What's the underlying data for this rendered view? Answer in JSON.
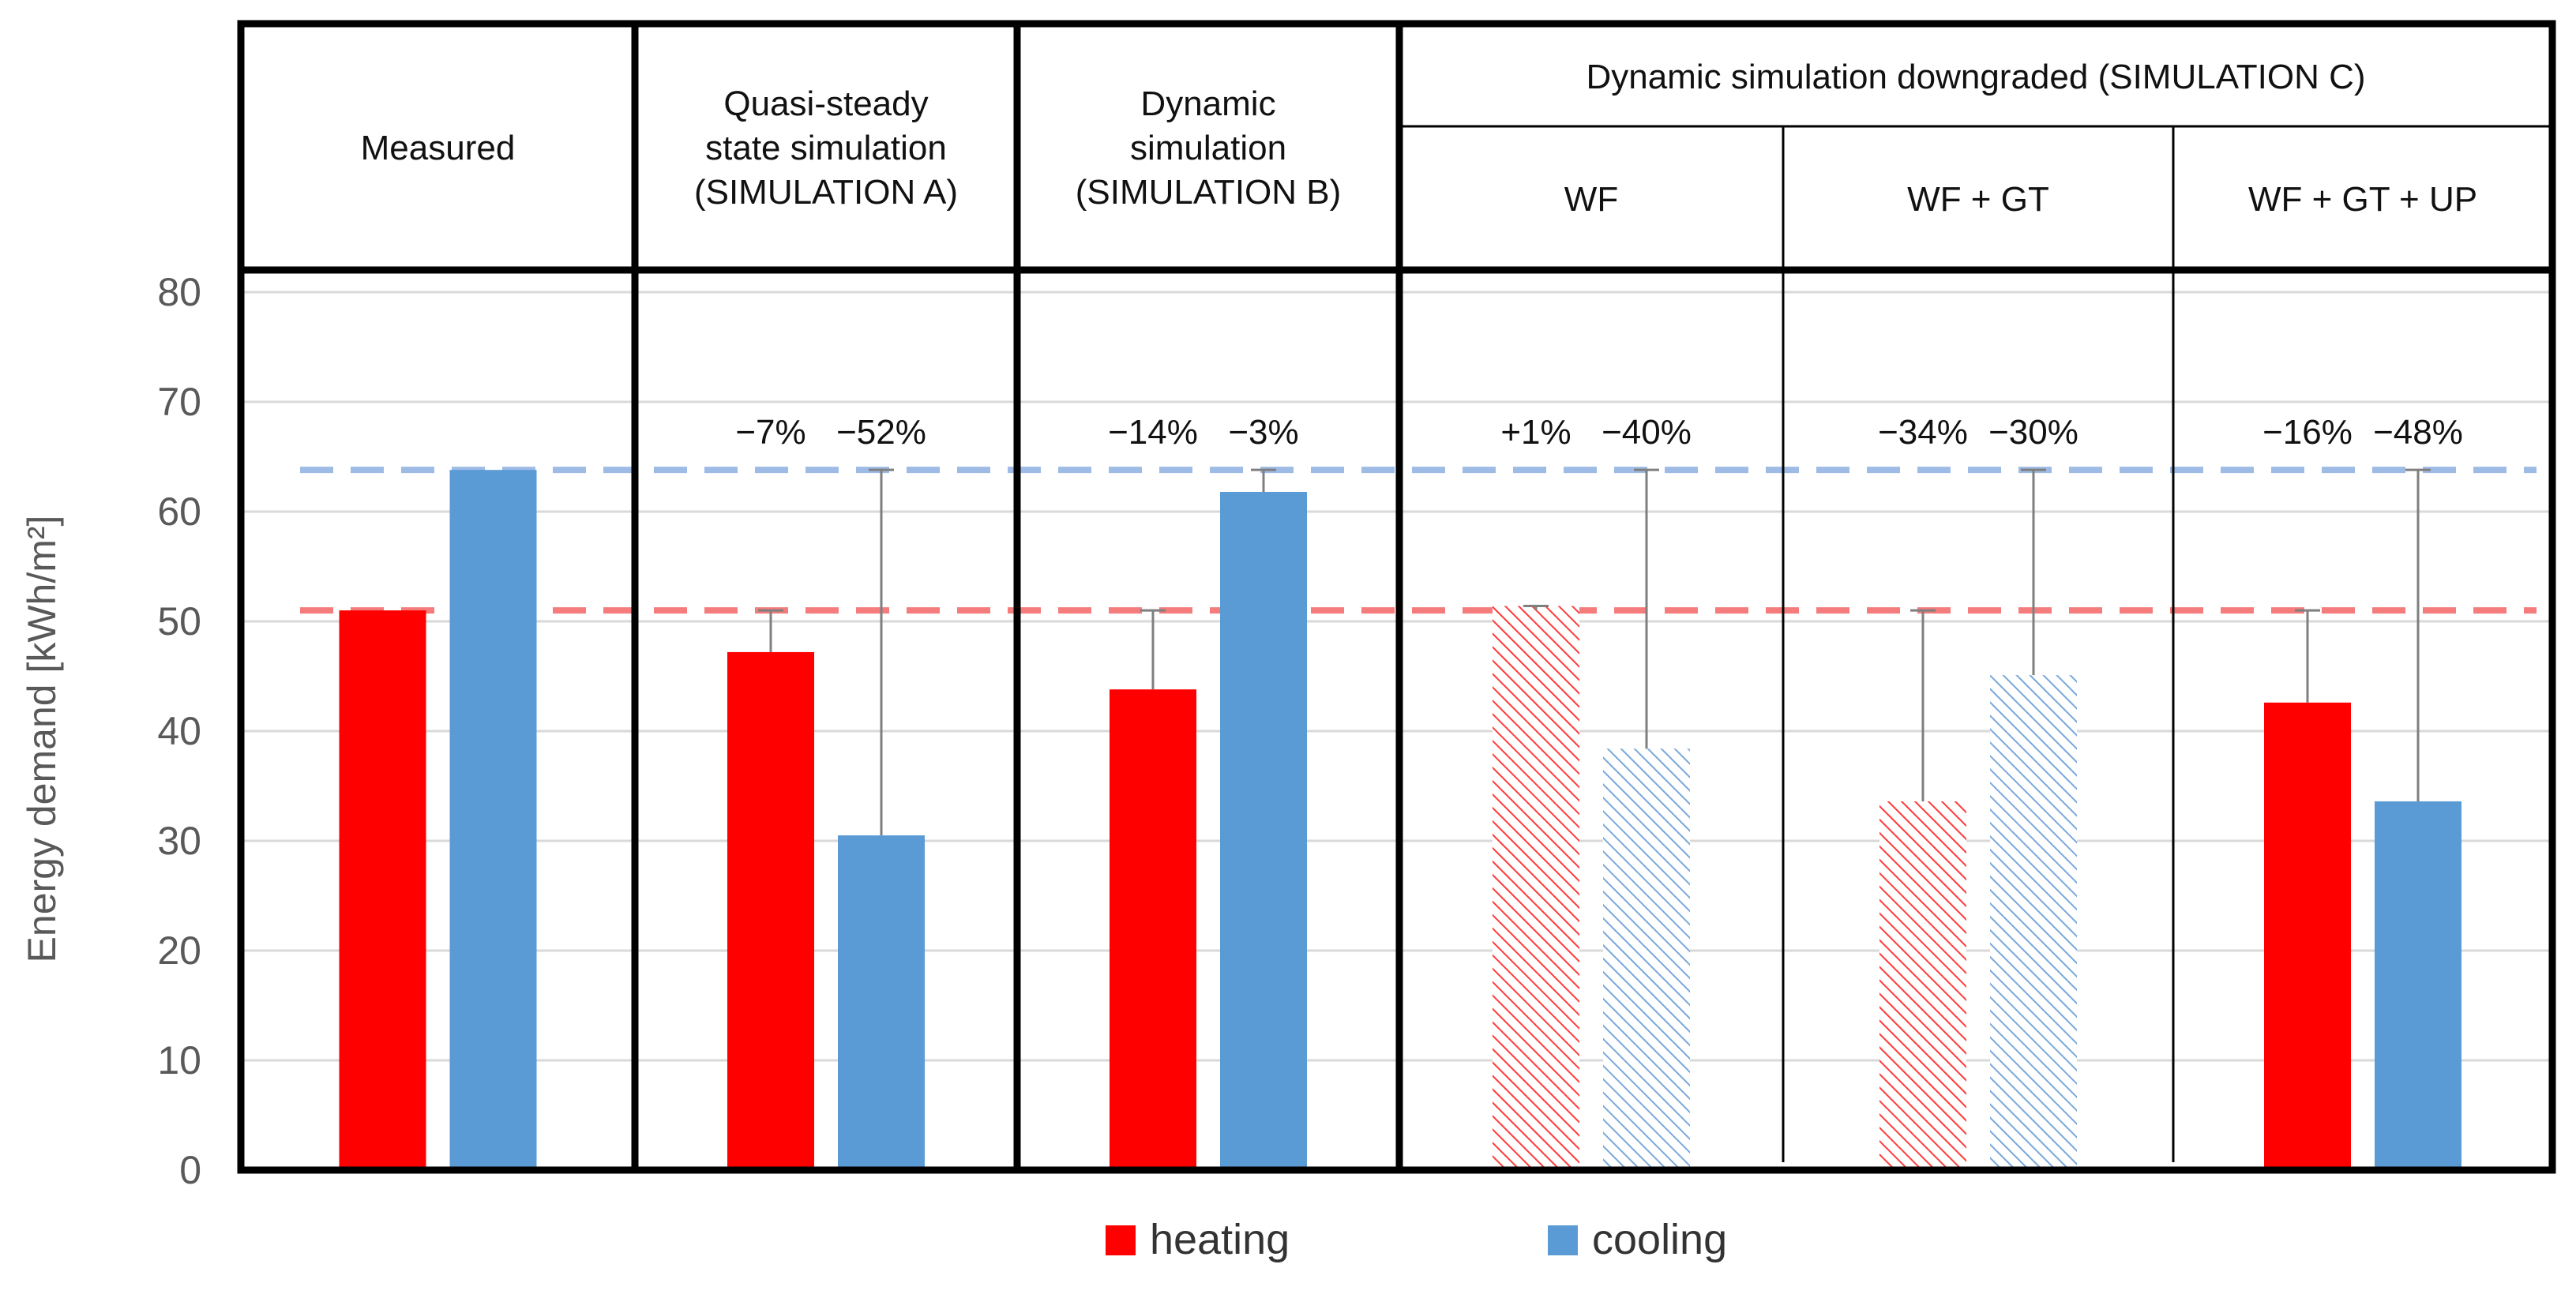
{
  "chart_data": {
    "type": "bar",
    "title": "",
    "ylabel": "Energy demand [kWh/m²]",
    "xlabel": "",
    "ylim": [
      0,
      80
    ],
    "yticks": [
      0,
      10,
      20,
      30,
      40,
      50,
      60,
      70,
      80
    ],
    "grid": true,
    "colors": {
      "heating": "#ff0000",
      "cooling": "#5b9bd5",
      "heating_ref": "#f47c7c",
      "cooling_ref": "#9dbbe5"
    },
    "reference_lines": [
      {
        "name": "measured cooling",
        "value": 63.8,
        "style": "dashed",
        "color": "#9dbbe5"
      },
      {
        "name": "measured heating",
        "value": 51.0,
        "style": "dashed",
        "color": "#f47c7c"
      }
    ],
    "header": {
      "simulation_c": "Dynamic simulation downgraded (SIMULATION C)"
    },
    "groups": [
      {
        "label_lines": [
          "Measured"
        ],
        "heating": 51.0,
        "cooling": 63.8,
        "heating_pattern": "solid",
        "cooling_pattern": "solid",
        "heating_label": "",
        "cooling_label": ""
      },
      {
        "label_lines": [
          "Quasi-steady",
          "state simulation",
          "(SIMULATION A)"
        ],
        "heating": 47.2,
        "cooling": 30.5,
        "heating_pattern": "solid",
        "cooling_pattern": "solid",
        "heating_label": "−7%",
        "cooling_label": "−52%"
      },
      {
        "label_lines": [
          "Dynamic",
          "simulation",
          "(SIMULATION B)"
        ],
        "heating": 43.8,
        "cooling": 61.8,
        "heating_pattern": "solid",
        "cooling_pattern": "solid",
        "heating_label": "−14%",
        "cooling_label": "−3%"
      },
      {
        "label_lines": [
          "WF"
        ],
        "heating": 51.4,
        "cooling": 38.4,
        "heating_pattern": "hatched",
        "cooling_pattern": "hatched",
        "heating_label": "+1%",
        "cooling_label": "−40%"
      },
      {
        "label_lines": [
          "WF + GT"
        ],
        "heating": 33.6,
        "cooling": 45.1,
        "heating_pattern": "hatched",
        "cooling_pattern": "hatched",
        "heating_label": "−34%",
        "cooling_label": "−30%"
      },
      {
        "label_lines": [
          "WF + GT + UP"
        ],
        "heating": 42.6,
        "cooling": 33.6,
        "heating_pattern": "solid",
        "cooling_pattern": "solid",
        "heating_label": "−16%",
        "cooling_label": "−48%"
      }
    ],
    "legend": {
      "position": "bottom-center",
      "entries": [
        {
          "name": "heating",
          "color": "#ff0000"
        },
        {
          "name": "cooling",
          "color": "#5b9bd5"
        }
      ]
    }
  }
}
